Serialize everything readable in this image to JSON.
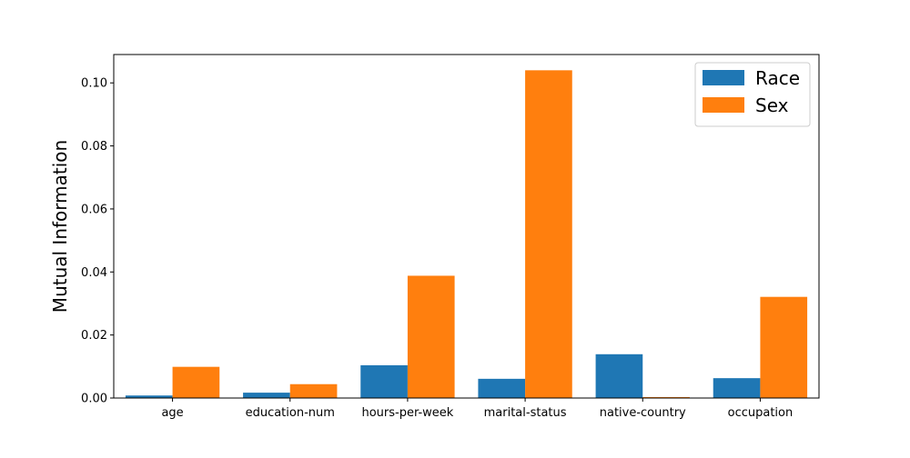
{
  "chart_data": {
    "type": "bar",
    "ylabel": "Mutual Information",
    "xlabel": "",
    "categories": [
      "age",
      "education-num",
      "hours-per-week",
      "marital-status",
      "native-country",
      "occupation"
    ],
    "series": [
      {
        "name": "Race",
        "color": "#1f77b4",
        "values": [
          0.0008,
          0.0017,
          0.0104,
          0.0061,
          0.0139,
          0.0063
        ]
      },
      {
        "name": "Sex",
        "color": "#ff7f0e",
        "values": [
          0.0099,
          0.0044,
          0.0388,
          0.104,
          0.0003,
          0.0321
        ]
      }
    ],
    "ylim": [
      0,
      0.109
    ],
    "yticks": [
      0.0,
      0.02,
      0.04,
      0.06,
      0.08,
      0.1
    ],
    "ytick_labels": [
      "0.00",
      "0.02",
      "0.04",
      "0.06",
      "0.08",
      "0.10"
    ],
    "grid": false,
    "legend_position": "top-right"
  }
}
